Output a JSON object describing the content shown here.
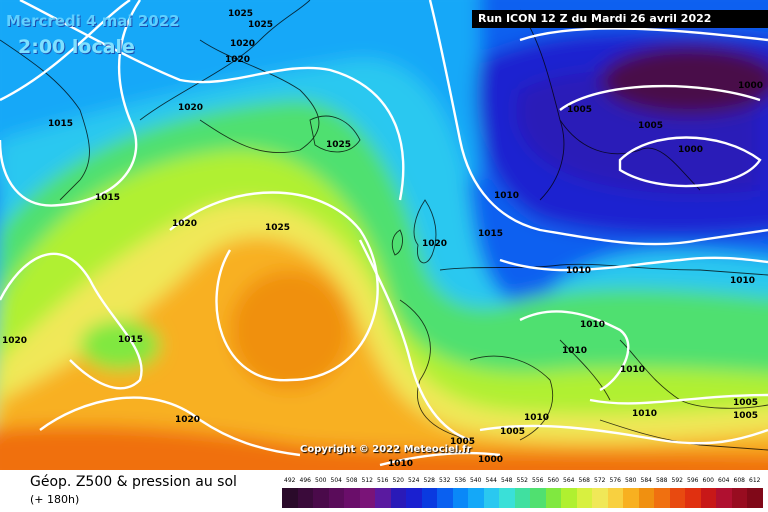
{
  "header": {
    "date": "Mercredi 4 mai 2022",
    "local_time": "2:00 locale",
    "run": "Run ICON 12 Z du Mardi 26 avril 2022"
  },
  "copyright": "Copyright © 2022 Meteociel.fr",
  "footer": {
    "title": "Géop. Z500 & pression au sol",
    "subtitle": "(+ 180h)"
  },
  "legend": {
    "values": [
      "492",
      "496",
      "500",
      "504",
      "508",
      "512",
      "516",
      "520",
      "524",
      "528",
      "532",
      "536",
      "540",
      "544",
      "548",
      "552",
      "556",
      "560",
      "564",
      "568",
      "572",
      "576",
      "580",
      "584",
      "588",
      "592",
      "596",
      "600",
      "604",
      "608",
      "612"
    ],
    "colors": [
      "#2a0a2a",
      "#3a0a3a",
      "#4a0a4a",
      "#5a0c5a",
      "#6a0e6a",
      "#7a1478",
      "#5a1aa0",
      "#2a1ab8",
      "#1a20d0",
      "#0a3ae0",
      "#0a60f0",
      "#0a88f8",
      "#14a8f8",
      "#2ac8f0",
      "#3ae0d8",
      "#40e0a0",
      "#50e070",
      "#80e840",
      "#b0f030",
      "#d8f040",
      "#f0e858",
      "#f8d040",
      "#f8b020",
      "#f09010",
      "#f07010",
      "#e84a10",
      "#e03010",
      "#c81818",
      "#b01030",
      "#980c20",
      "#800818"
    ]
  },
  "map_labels": [
    {
      "text": "1025",
      "kind": "isobar"
    },
    {
      "text": "1025",
      "kind": "isobar"
    },
    {
      "text": "1020",
      "kind": "isobar"
    },
    {
      "text": "1020",
      "kind": "isobar"
    },
    {
      "text": "1015",
      "kind": "isobar"
    },
    {
      "text": "1015",
      "kind": "isobar"
    },
    {
      "text": "1020",
      "kind": "isobar"
    },
    {
      "text": "1025",
      "kind": "isobar"
    },
    {
      "text": "1025",
      "kind": "isobar"
    },
    {
      "text": "1020",
      "kind": "isobar"
    },
    {
      "text": "1015",
      "kind": "isobar"
    },
    {
      "text": "1010",
      "kind": "isobar"
    },
    {
      "text": "1005",
      "kind": "isobar"
    },
    {
      "text": "1005",
      "kind": "isobar"
    },
    {
      "text": "1000",
      "kind": "isobar"
    },
    {
      "text": "1000",
      "kind": "isobar"
    },
    {
      "text": "1010",
      "kind": "isobar"
    },
    {
      "text": "1010",
      "kind": "isobar"
    },
    {
      "text": "1010",
      "kind": "isobar"
    },
    {
      "text": "1010",
      "kind": "isobar"
    },
    {
      "text": "1020",
      "kind": "isobar"
    },
    {
      "text": "1015",
      "kind": "isobar"
    },
    {
      "text": "1020",
      "kind": "isobar"
    },
    {
      "text": "1010",
      "kind": "isobar"
    },
    {
      "text": "1005",
      "kind": "isobar"
    },
    {
      "text": "1005",
      "kind": "isobar"
    },
    {
      "text": "1000",
      "kind": "isobar"
    },
    {
      "text": "1010",
      "kind": "isobar"
    },
    {
      "text": "1005",
      "kind": "isobar"
    },
    {
      "text": "1005",
      "kind": "isobar"
    },
    {
      "text": "1010",
      "kind": "isobar"
    },
    {
      "text": "1010",
      "kind": "isobar"
    },
    {
      "text": "1020",
      "kind": "isobar"
    }
  ]
}
